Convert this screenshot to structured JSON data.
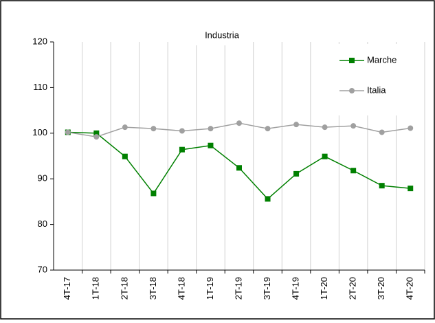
{
  "chart_data": {
    "type": "line",
    "title": "Industria",
    "categories": [
      "4T-17",
      "1T-18",
      "2T-18",
      "3T-18",
      "4T-18",
      "1T-19",
      "2T-19",
      "3T-19",
      "4T-19",
      "1T-20",
      "2T-20",
      "3T-20",
      "4T-20"
    ],
    "series": [
      {
        "name": "Marche",
        "color": "#008000",
        "marker": "square",
        "values": [
          100.2,
          100,
          94.9,
          86.8,
          96.4,
          97.3,
          92.4,
          85.6,
          91.1,
          94.9,
          91.8,
          88.5,
          87.9
        ]
      },
      {
        "name": "Italia",
        "color": "#a0a0a0",
        "marker": "circle",
        "values": [
          100.2,
          99.2,
          101.3,
          101,
          100.5,
          101,
          102.2,
          101,
          101.9,
          101.3,
          101.6,
          100.2,
          101.1
        ]
      }
    ],
    "ylim": [
      70,
      120
    ],
    "yticks": [
      70,
      80,
      90,
      100,
      110,
      120
    ],
    "grid": "vertical",
    "legend": "upper right"
  }
}
